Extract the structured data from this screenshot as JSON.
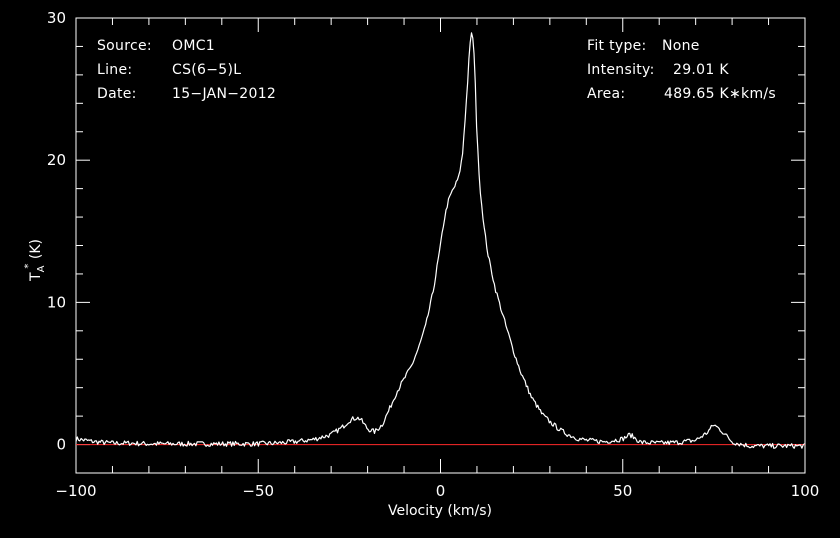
{
  "info_left": {
    "source_label": "Source:",
    "source_value": "OMC1",
    "line_label": "Line:",
    "line_value": "CS(6−5)L",
    "date_label": "Date:",
    "date_value": "15−JAN−2012"
  },
  "info_right": {
    "fit_label": "Fit type:",
    "fit_value": "None",
    "intensity_label": "Intensity:",
    "intensity_value": "29.01 K",
    "area_label": "Area:",
    "area_value": "489.65 K∗km/s"
  },
  "chart_data": {
    "type": "line",
    "title": "",
    "xlabel": "Velocity (km/s)",
    "ylabel": "T",
    "ylabel_sub": "A",
    "ylabel_sup": "*",
    "ylabel_unit": " (K)",
    "xlim": [
      -100,
      100
    ],
    "ylim": [
      -2,
      30
    ],
    "xticks": [
      -100,
      -50,
      0,
      50,
      100
    ],
    "xtick_labels": [
      "−100",
      "−50",
      "0",
      "50",
      "100"
    ],
    "yticks": [
      0,
      10,
      20,
      30
    ],
    "ytick_labels": [
      "0",
      "10",
      "20",
      "30"
    ],
    "grid": false,
    "baseline": {
      "y": 0,
      "color": "#ff2a2a"
    },
    "colors": {
      "background": "#000000",
      "axes": "#ffffff",
      "spectrum": "#ffffff"
    },
    "series": [
      {
        "x": [
          -100,
          -95,
          -90,
          -85,
          -80,
          -75,
          -70,
          -65,
          -60,
          -55,
          -50,
          -45,
          -40,
          -35,
          -30,
          -27,
          -25,
          -23,
          -22,
          -20,
          -18,
          -16,
          -14,
          -12,
          -10,
          -8,
          -6,
          -4,
          -2,
          0,
          1,
          2,
          3,
          4,
          5,
          6,
          7,
          8,
          8.5,
          9,
          9.5,
          10,
          11,
          12,
          13,
          14,
          15,
          16,
          18,
          20,
          22,
          25,
          28,
          30,
          33,
          35,
          38,
          40,
          45,
          50,
          52,
          55,
          60,
          65,
          70,
          73,
          75,
          77,
          80,
          82,
          85,
          90,
          95,
          100
        ],
        "y": [
          0.4,
          0.2,
          0.1,
          0.1,
          0.05,
          0.05,
          0.05,
          0.05,
          0.05,
          0.05,
          0.05,
          0.1,
          0.2,
          0.35,
          0.7,
          1.2,
          1.7,
          1.9,
          1.8,
          1.1,
          0.9,
          1.4,
          2.5,
          3.7,
          4.6,
          5.5,
          6.8,
          8.4,
          10.8,
          14,
          15.8,
          17,
          17.7,
          18.2,
          18.8,
          20.3,
          23.8,
          27.8,
          29.01,
          28.3,
          26,
          21.5,
          17.6,
          15.2,
          13.4,
          12.2,
          11,
          10.1,
          8.3,
          6.6,
          5.1,
          3.3,
          2.1,
          1.6,
          1,
          0.7,
          0.4,
          0.3,
          0.2,
          0.4,
          0.7,
          0.15,
          0.1,
          0.15,
          0.3,
          0.8,
          1.4,
          1.0,
          0.2,
          0.05,
          -0.1,
          -0.1,
          -0.1,
          -0.1
        ]
      }
    ]
  }
}
